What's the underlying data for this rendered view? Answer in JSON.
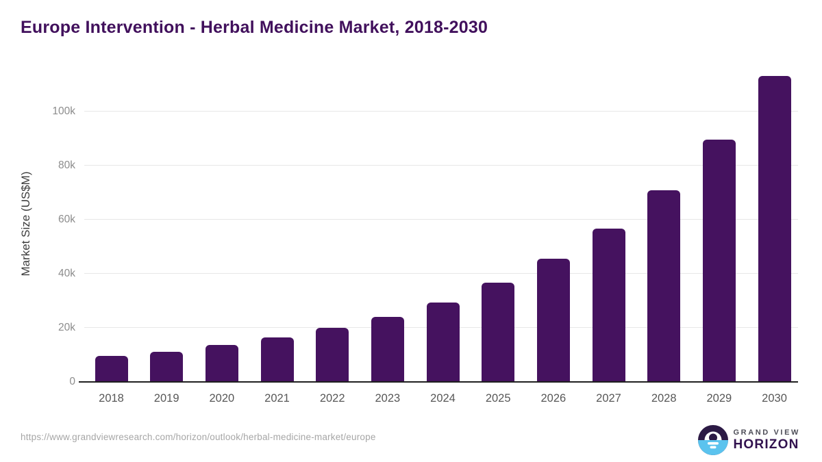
{
  "chart_data": {
    "type": "bar",
    "title": "Europe Intervention - Herbal Medicine Market, 2018-2030",
    "categories": [
      "2018",
      "2019",
      "2020",
      "2021",
      "2022",
      "2023",
      "2024",
      "2025",
      "2026",
      "2027",
      "2028",
      "2029",
      "2030"
    ],
    "values": [
      9600,
      11200,
      13700,
      16400,
      20000,
      24100,
      29400,
      36700,
      45600,
      56700,
      71000,
      89700,
      113200
    ],
    "unit": "US$M",
    "xlabel": "",
    "ylabel": "Market Size (US$M)",
    "ylim": [
      0,
      117000
    ],
    "ytick_values": [
      0,
      20000,
      40000,
      60000,
      80000,
      100000
    ],
    "ytick_labels": [
      "0",
      "20k",
      "40k",
      "60k",
      "80k",
      "100k"
    ],
    "grid": true,
    "legend": false,
    "bar_color": "#45125f"
  },
  "footer": {
    "source_url": "https://www.grandviewresearch.com/horizon/outlook/herbal-medicine-market/europe",
    "brand_top": "GRAND VIEW",
    "brand_bottom": "HORIZON"
  },
  "colors": {
    "title": "#41105c",
    "bar": "#45125f",
    "axis_line": "#1f1f1f",
    "gridline": "#e7e7e7",
    "tick_label": "#8c8c8c",
    "year_label": "#575757",
    "ylabel": "#3d3d3d",
    "url": "#a6a6a6",
    "brand_top": "#4d4d57",
    "brand_bottom": "#31114e",
    "logo_dark": "#2c1a45",
    "logo_blue": "#5bc3ee",
    "logo_white": "#ffffff"
  }
}
